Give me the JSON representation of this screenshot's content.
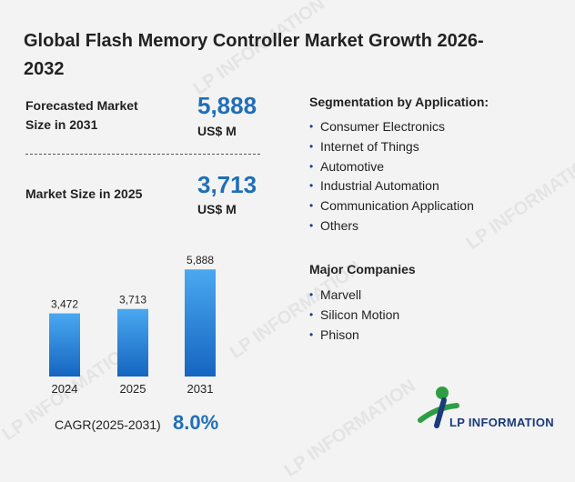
{
  "title": "Global Flash Memory Controller Market Growth 2026-2032",
  "forecast": {
    "label": "Forecasted Market Size in 2031",
    "value": "5,888",
    "unit": "US$ M"
  },
  "current": {
    "label": "Market Size in 2025",
    "value": "3,713",
    "unit": "US$ M"
  },
  "segmentation": {
    "title": "Segmentation by Application:",
    "items": [
      "Consumer Electronics",
      "Internet of Things",
      "Automotive",
      "Industrial Automation",
      "Communication Application",
      "Others"
    ]
  },
  "companies": {
    "title": "Major Companies",
    "items": [
      "Marvell",
      "Silicon Motion",
      "Phison"
    ]
  },
  "cagr": {
    "label": "CAGR(2025-2031)",
    "value": "8.0%"
  },
  "logo": {
    "text": "LP INFORMATION",
    "watermark": "LP INFORMATION"
  },
  "colors": {
    "accent": "#1f6fb8",
    "bar_top": "#4aa8f0",
    "bar_bottom": "#1565c0"
  },
  "chart_data": {
    "type": "bar",
    "categories": [
      "2024",
      "2025",
      "2031"
    ],
    "values": [
      3472,
      3713,
      5888
    ],
    "data_labels": [
      "3,472",
      "3,713",
      "5,888"
    ],
    "title": "",
    "xlabel": "",
    "ylabel": "",
    "ylim": [
      0,
      6000
    ],
    "grid": false,
    "legend": "none"
  }
}
